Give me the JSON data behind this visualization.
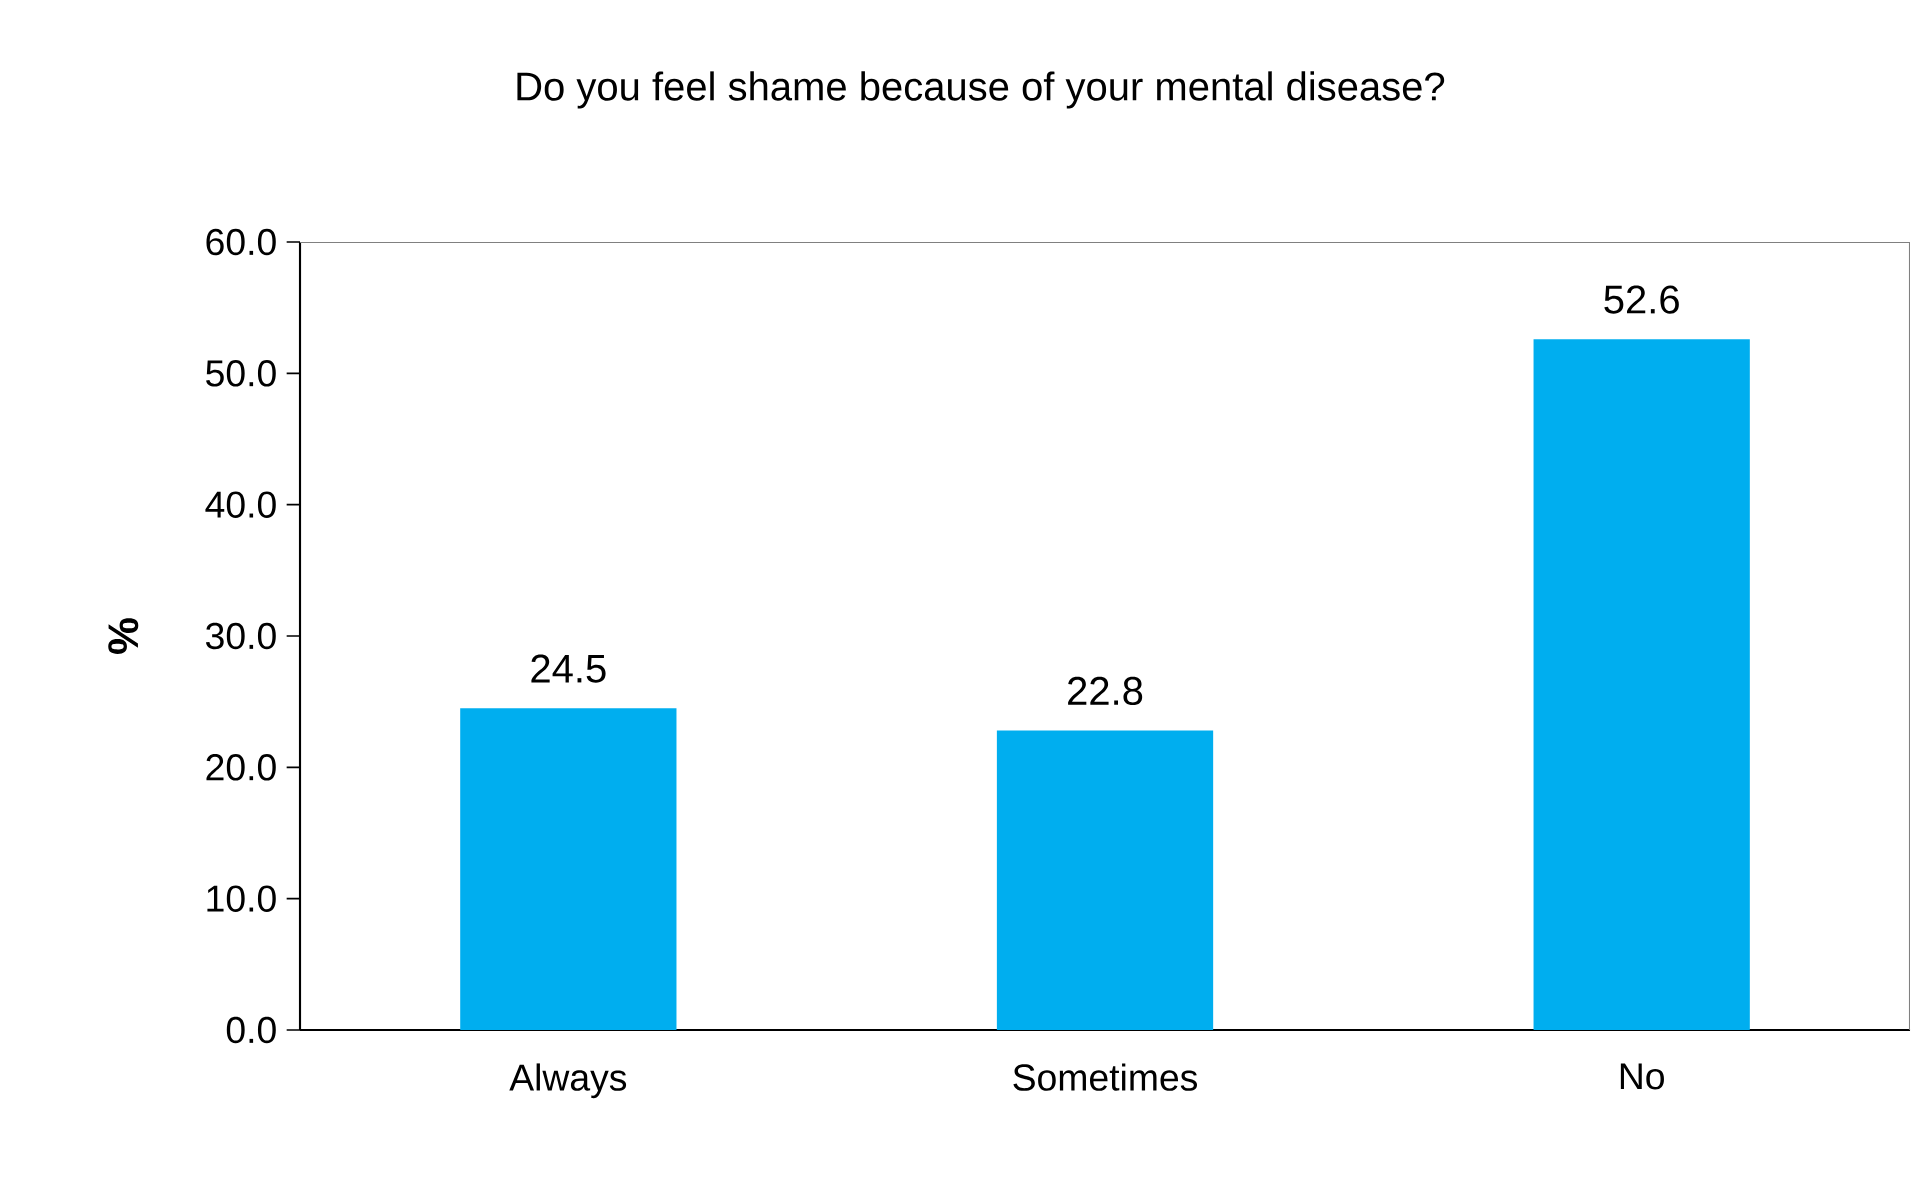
{
  "chart_data": {
    "type": "bar",
    "title": "Do you feel shame because of your mental disease?",
    "ylabel": "%",
    "categories": [
      "Always",
      "Sometimes",
      "No"
    ],
    "values": [
      24.5,
      22.8,
      52.6
    ],
    "color": "#00aeef",
    "data_labels": true,
    "ylim": [
      0,
      60
    ],
    "yticks": [
      {
        "value": 0,
        "label": "0.0"
      },
      {
        "value": 10,
        "label": "10.0"
      },
      {
        "value": 20,
        "label": "20.0"
      },
      {
        "value": 30,
        "label": "30.0"
      },
      {
        "value": 40,
        "label": "40.0"
      },
      {
        "value": 50,
        "label": "50.0"
      },
      {
        "value": 60,
        "label": "60.0"
      }
    ]
  }
}
